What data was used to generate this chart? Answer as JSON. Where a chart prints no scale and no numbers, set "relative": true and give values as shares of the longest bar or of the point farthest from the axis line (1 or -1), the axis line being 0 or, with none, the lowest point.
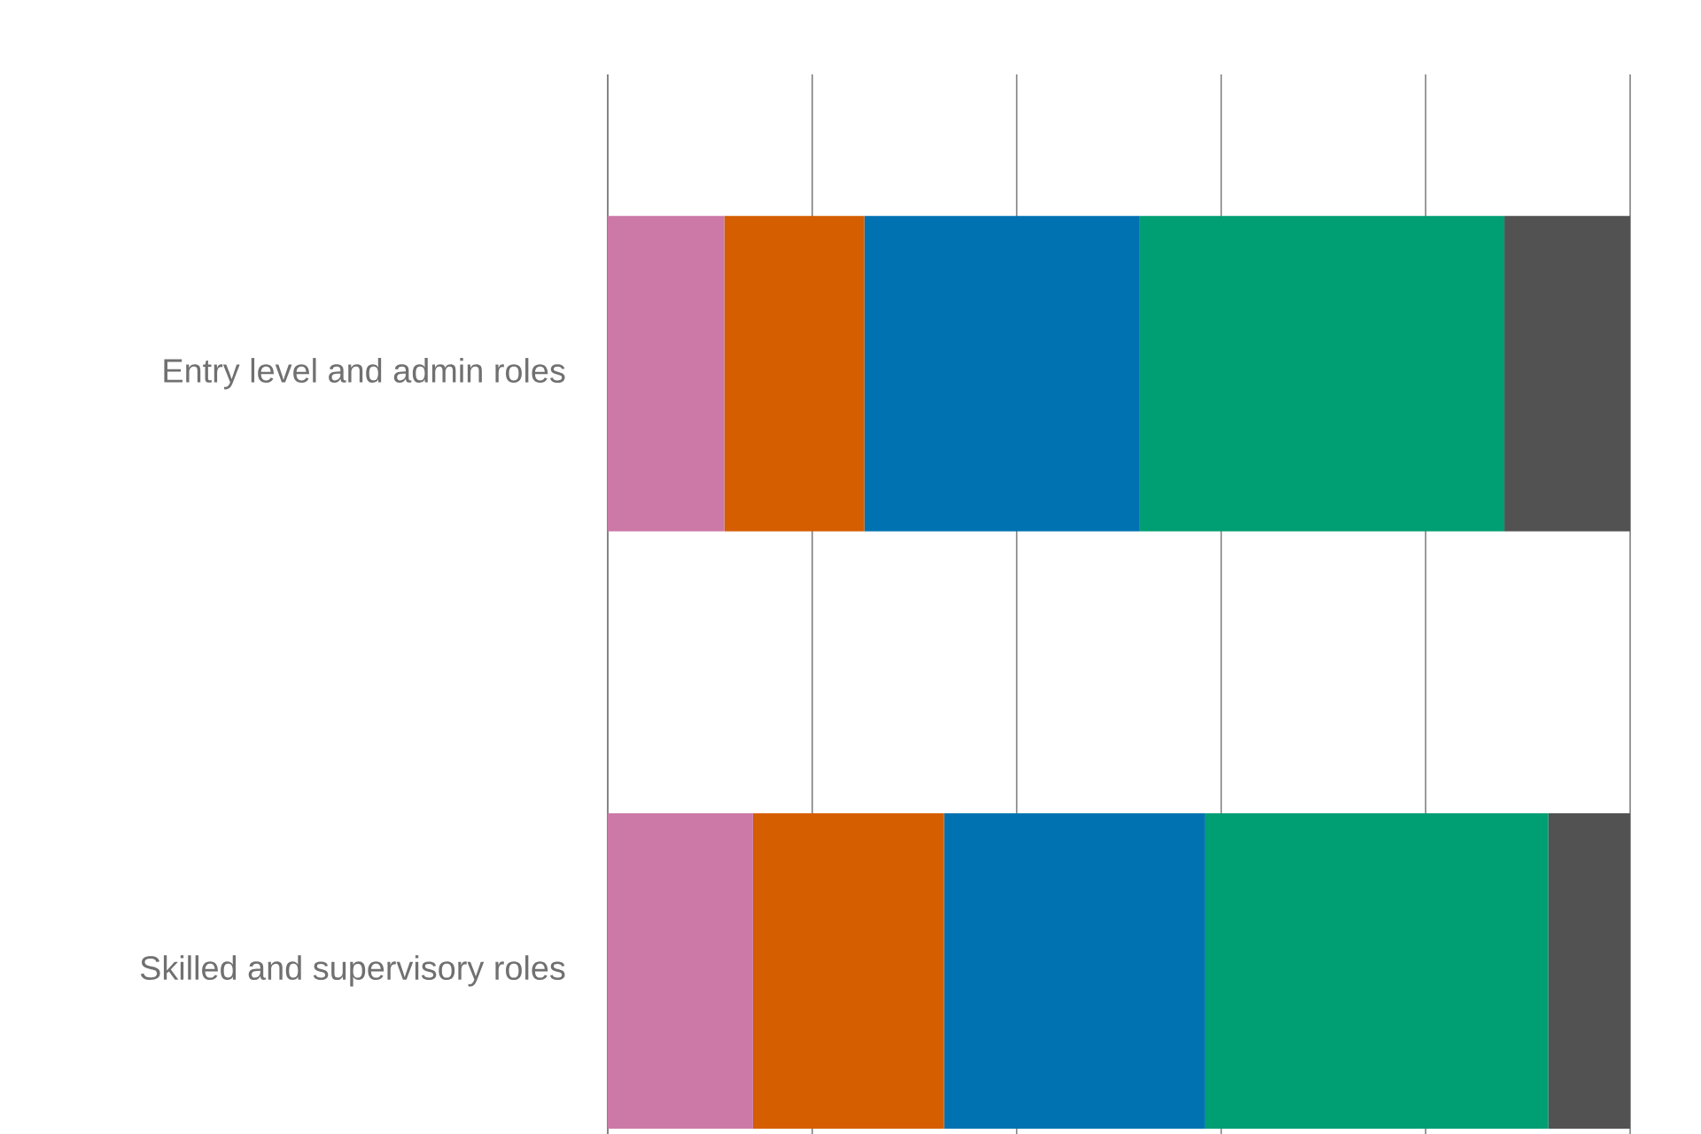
{
  "chart_data": {
    "type": "bar",
    "orientation": "horizontal",
    "stacked": true,
    "relative": true,
    "grid": "x",
    "categories": [
      "Entry level and admin roles",
      "Skilled and supervisory roles"
    ],
    "series": [
      {
        "color": "#cc79a7",
        "values": [
          0.114,
          0.142
        ]
      },
      {
        "color": "#d55e00",
        "values": [
          0.137,
          0.187
        ]
      },
      {
        "color": "#0072b2",
        "values": [
          0.269,
          0.255
        ]
      },
      {
        "color": "#009e73",
        "values": [
          0.357,
          0.336
        ]
      },
      {
        "color": "#525252",
        "values": [
          0.123,
          0.08
        ]
      }
    ]
  }
}
